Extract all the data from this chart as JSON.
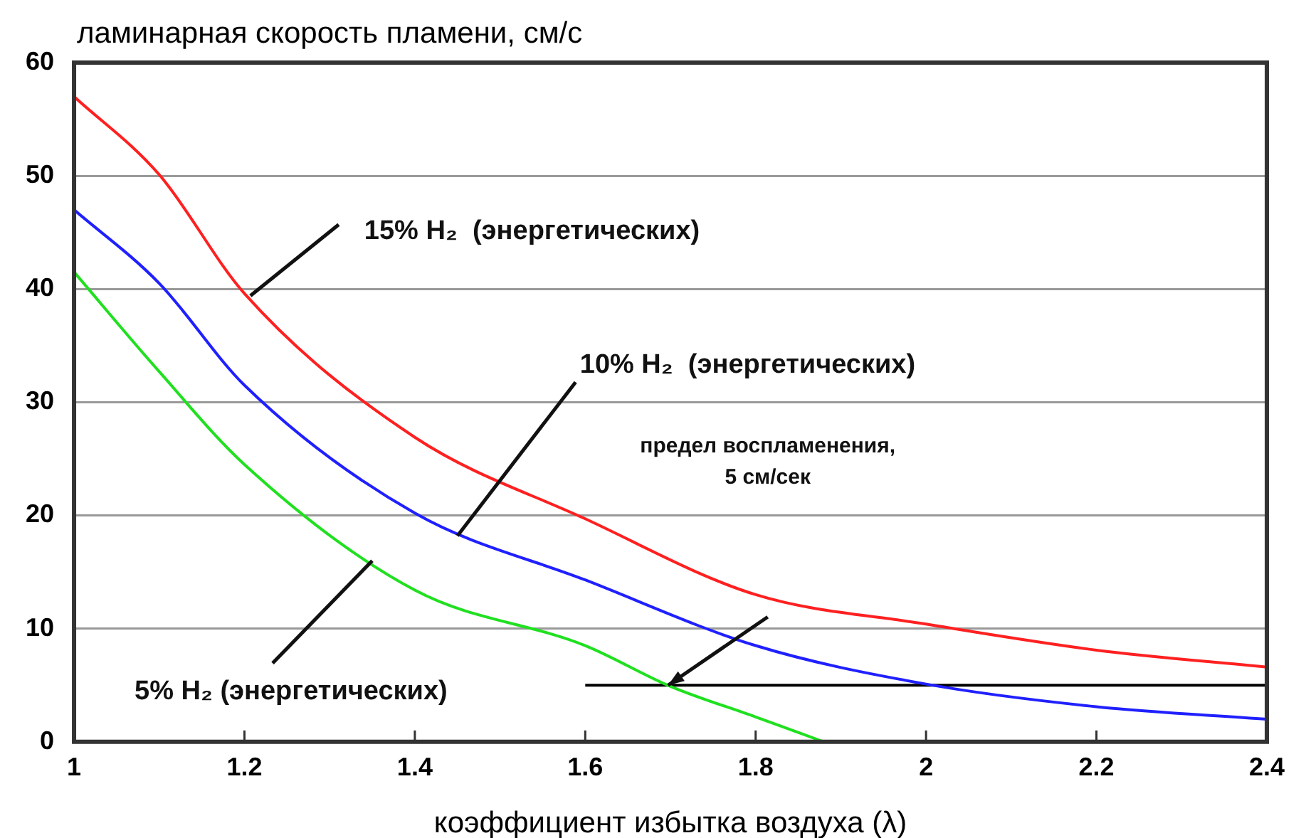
{
  "chart_data": {
    "type": "line",
    "ylabel": "ламинарная скорость пламени, см/с",
    "xlabel": "коэффициент избытка воздуха (λ)",
    "series": [
      {
        "color": "#ff2020",
        "x": [
          1,
          1.1,
          1.2,
          1.4,
          1.6,
          1.8,
          2,
          2.2,
          2.4
        ],
        "values": [
          57,
          50.1,
          39.6,
          26.9,
          19.7,
          13,
          10.4,
          8.1,
          6.6
        ]
      },
      {
        "color": "#2020ff",
        "x": [
          1,
          1.1,
          1.2,
          1.4,
          1.6,
          1.8,
          2,
          2.2,
          2.4
        ],
        "values": [
          47,
          40.5,
          31.5,
          20.2,
          14.3,
          8.5,
          5.1,
          3.1,
          2
        ]
      },
      {
        "color": "#20e020",
        "x": [
          1,
          1.1,
          1.2,
          1.4,
          1.6,
          1.7,
          1.8,
          1.88
        ],
        "values": [
          41.5,
          32.7,
          24.5,
          13.4,
          8.5,
          4.9,
          2.2,
          0
        ]
      },
      {
        "color": "#000000",
        "x": [
          1.6,
          2.4
        ],
        "values": [
          5,
          5
        ]
      }
    ],
    "annotations": [
      {
        "text": "15% H₂  (энергетических)",
        "x": 1.207,
        "y": 39.4
      },
      {
        "text": "10% H₂  (энергетических)",
        "x": 1.45,
        "y": 18.2
      },
      {
        "text": "5% H₂ (энергетических)",
        "x": 1.35,
        "y": 16
      },
      "предел воспламенения,\n5 см/сек"
    ],
    "xlim": [
      1,
      2.4
    ],
    "xticks": [
      1,
      1.2,
      1.4,
      1.6,
      1.8,
      2,
      2.2,
      2.4
    ],
    "ylim": [
      0,
      60
    ],
    "yticks": [
      0,
      10,
      20,
      30,
      40,
      50,
      60
    ],
    "grid": "y",
    "legend": false,
    "marker": "none",
    "line_style": "solid"
  }
}
